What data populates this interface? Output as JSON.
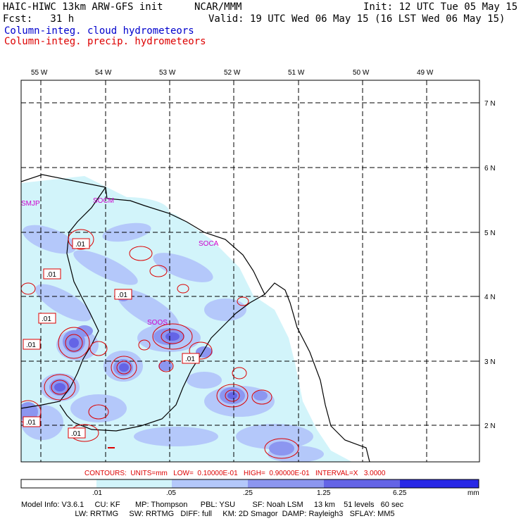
{
  "header": {
    "title_left": "HAIC-HIWC 13km ARW-GFS init",
    "org": "NCAR/MMM",
    "init": "Init: 12 UTC Tue 05 May 15",
    "fcst": "Fcst:   31 h",
    "valid": "Valid: 19 UTC Wed 06 May 15 (16 LST Wed 06 May 15)",
    "field1": "Column-integ. cloud hydrometeors",
    "field2": "Column-integ. precip. hydrometeors"
  },
  "map": {
    "lon_labels": [
      "55 W",
      "54 W",
      "53 W",
      "52 W",
      "51 W",
      "50 W",
      "49 W"
    ],
    "lat_labels": [
      "7 N",
      "6 N",
      "5 N",
      "4 N",
      "3 N",
      "2 N"
    ],
    "station_labels": [
      "SMJP",
      "SOCM",
      "SOCA",
      "SOOS"
    ],
    "contour_labels": [
      ".01",
      ".01",
      ".01",
      ".01",
      ".01",
      ".01",
      ".01",
      ".01"
    ]
  },
  "legend": {
    "contours_text": "CONTOURS:  UNITS=mm   LOW=  0.10000E-01   HIGH=  0.90000E-01   INTERVAL=X   3.0000",
    "ticks": [
      ".01",
      ".05",
      ".25",
      "1.25",
      "6.25"
    ],
    "units": "mm",
    "colors": [
      "#ffffff",
      "#d2f4fa",
      "#b4c8fa",
      "#8c96f0",
      "#6464e6",
      "#2828e6"
    ]
  },
  "model_info": {
    "line1": "Model Info: V3.6.1     CU: KF       MP: Thompson      PBL: YSU        SF: Noah LSM     13 km    51 levels   60 sec",
    "line2": "                         LW: RRTMG     SW: RRTMG   DIFF: full     KM: 2D Smagor  DAMP: Rayleigh3   SFLAY: MM5"
  }
}
